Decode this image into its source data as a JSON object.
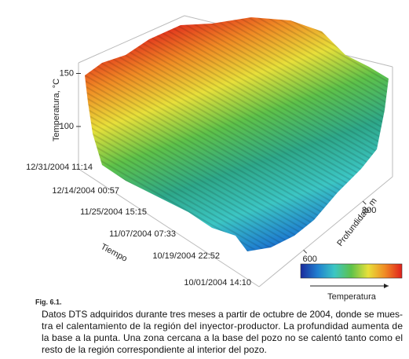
{
  "chart_data": {
    "type": "surface",
    "zlabel": "Temperatura, °C",
    "zticks": [
      100,
      150
    ],
    "xlabel": "Tiempo",
    "x": [
      "10/01/2004 14:10",
      "10/19/2004 22:52",
      "11/07/2004 07:33",
      "11/25/2004 15:15",
      "12/14/2004 00:57",
      "12/31/2004 11:14"
    ],
    "ylabel": "Profundidad, m",
    "yticks": [
      600,
      800
    ],
    "colorbar_label": "Temperatura",
    "colormap": [
      "#1a2a9c",
      "#1f7fd0",
      "#3cc6c4",
      "#5ec24a",
      "#e8e03a",
      "#f08a24",
      "#e0201c"
    ]
  },
  "caption": {
    "label": "Fig. 6.1.",
    "lines": [
      "Datos DTS adquiridos durante tres meses a partir de octubre de 2004, donde se mues-",
      "tra el calentamiento de la región del inyector-productor. La profundidad aumenta de",
      "la base a la punta. Una zona cercana a la base del pozo no se calentó tanto como el",
      "resto de la región correspondiente al interior del pozo."
    ]
  }
}
